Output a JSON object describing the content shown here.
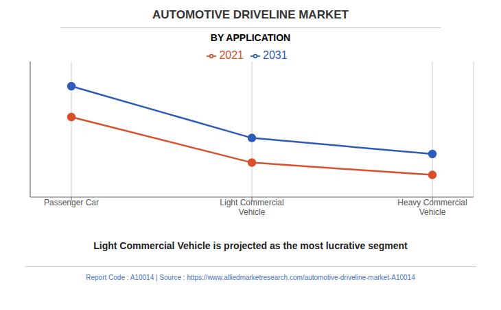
{
  "chart_data": {
    "type": "line",
    "title": "AUTOMOTIVE DRIVELINE MARKET",
    "subtitle": "BY APPLICATION",
    "categories": [
      "Passenger Car",
      "Light Commercial\nVehicle",
      "Heavy Commercial\nVehicle"
    ],
    "series": [
      {
        "name": "2021",
        "color": "#d94f2b",
        "values": [
          65,
          28,
          18
        ]
      },
      {
        "name": "2031",
        "color": "#2e5bba",
        "values": [
          90,
          48,
          35
        ]
      }
    ],
    "ylim": [
      0,
      110
    ],
    "grid": true,
    "legend": "top",
    "marker": "circle",
    "tick_labels": "x",
    "annotations": [
      "Light Commercial Vehicle is projected as the most lucrative segment",
      "Report Code : A10014  |  Source : https://www.alliedmarketresearch.com/automotive-driveline-market-A10014"
    ]
  }
}
